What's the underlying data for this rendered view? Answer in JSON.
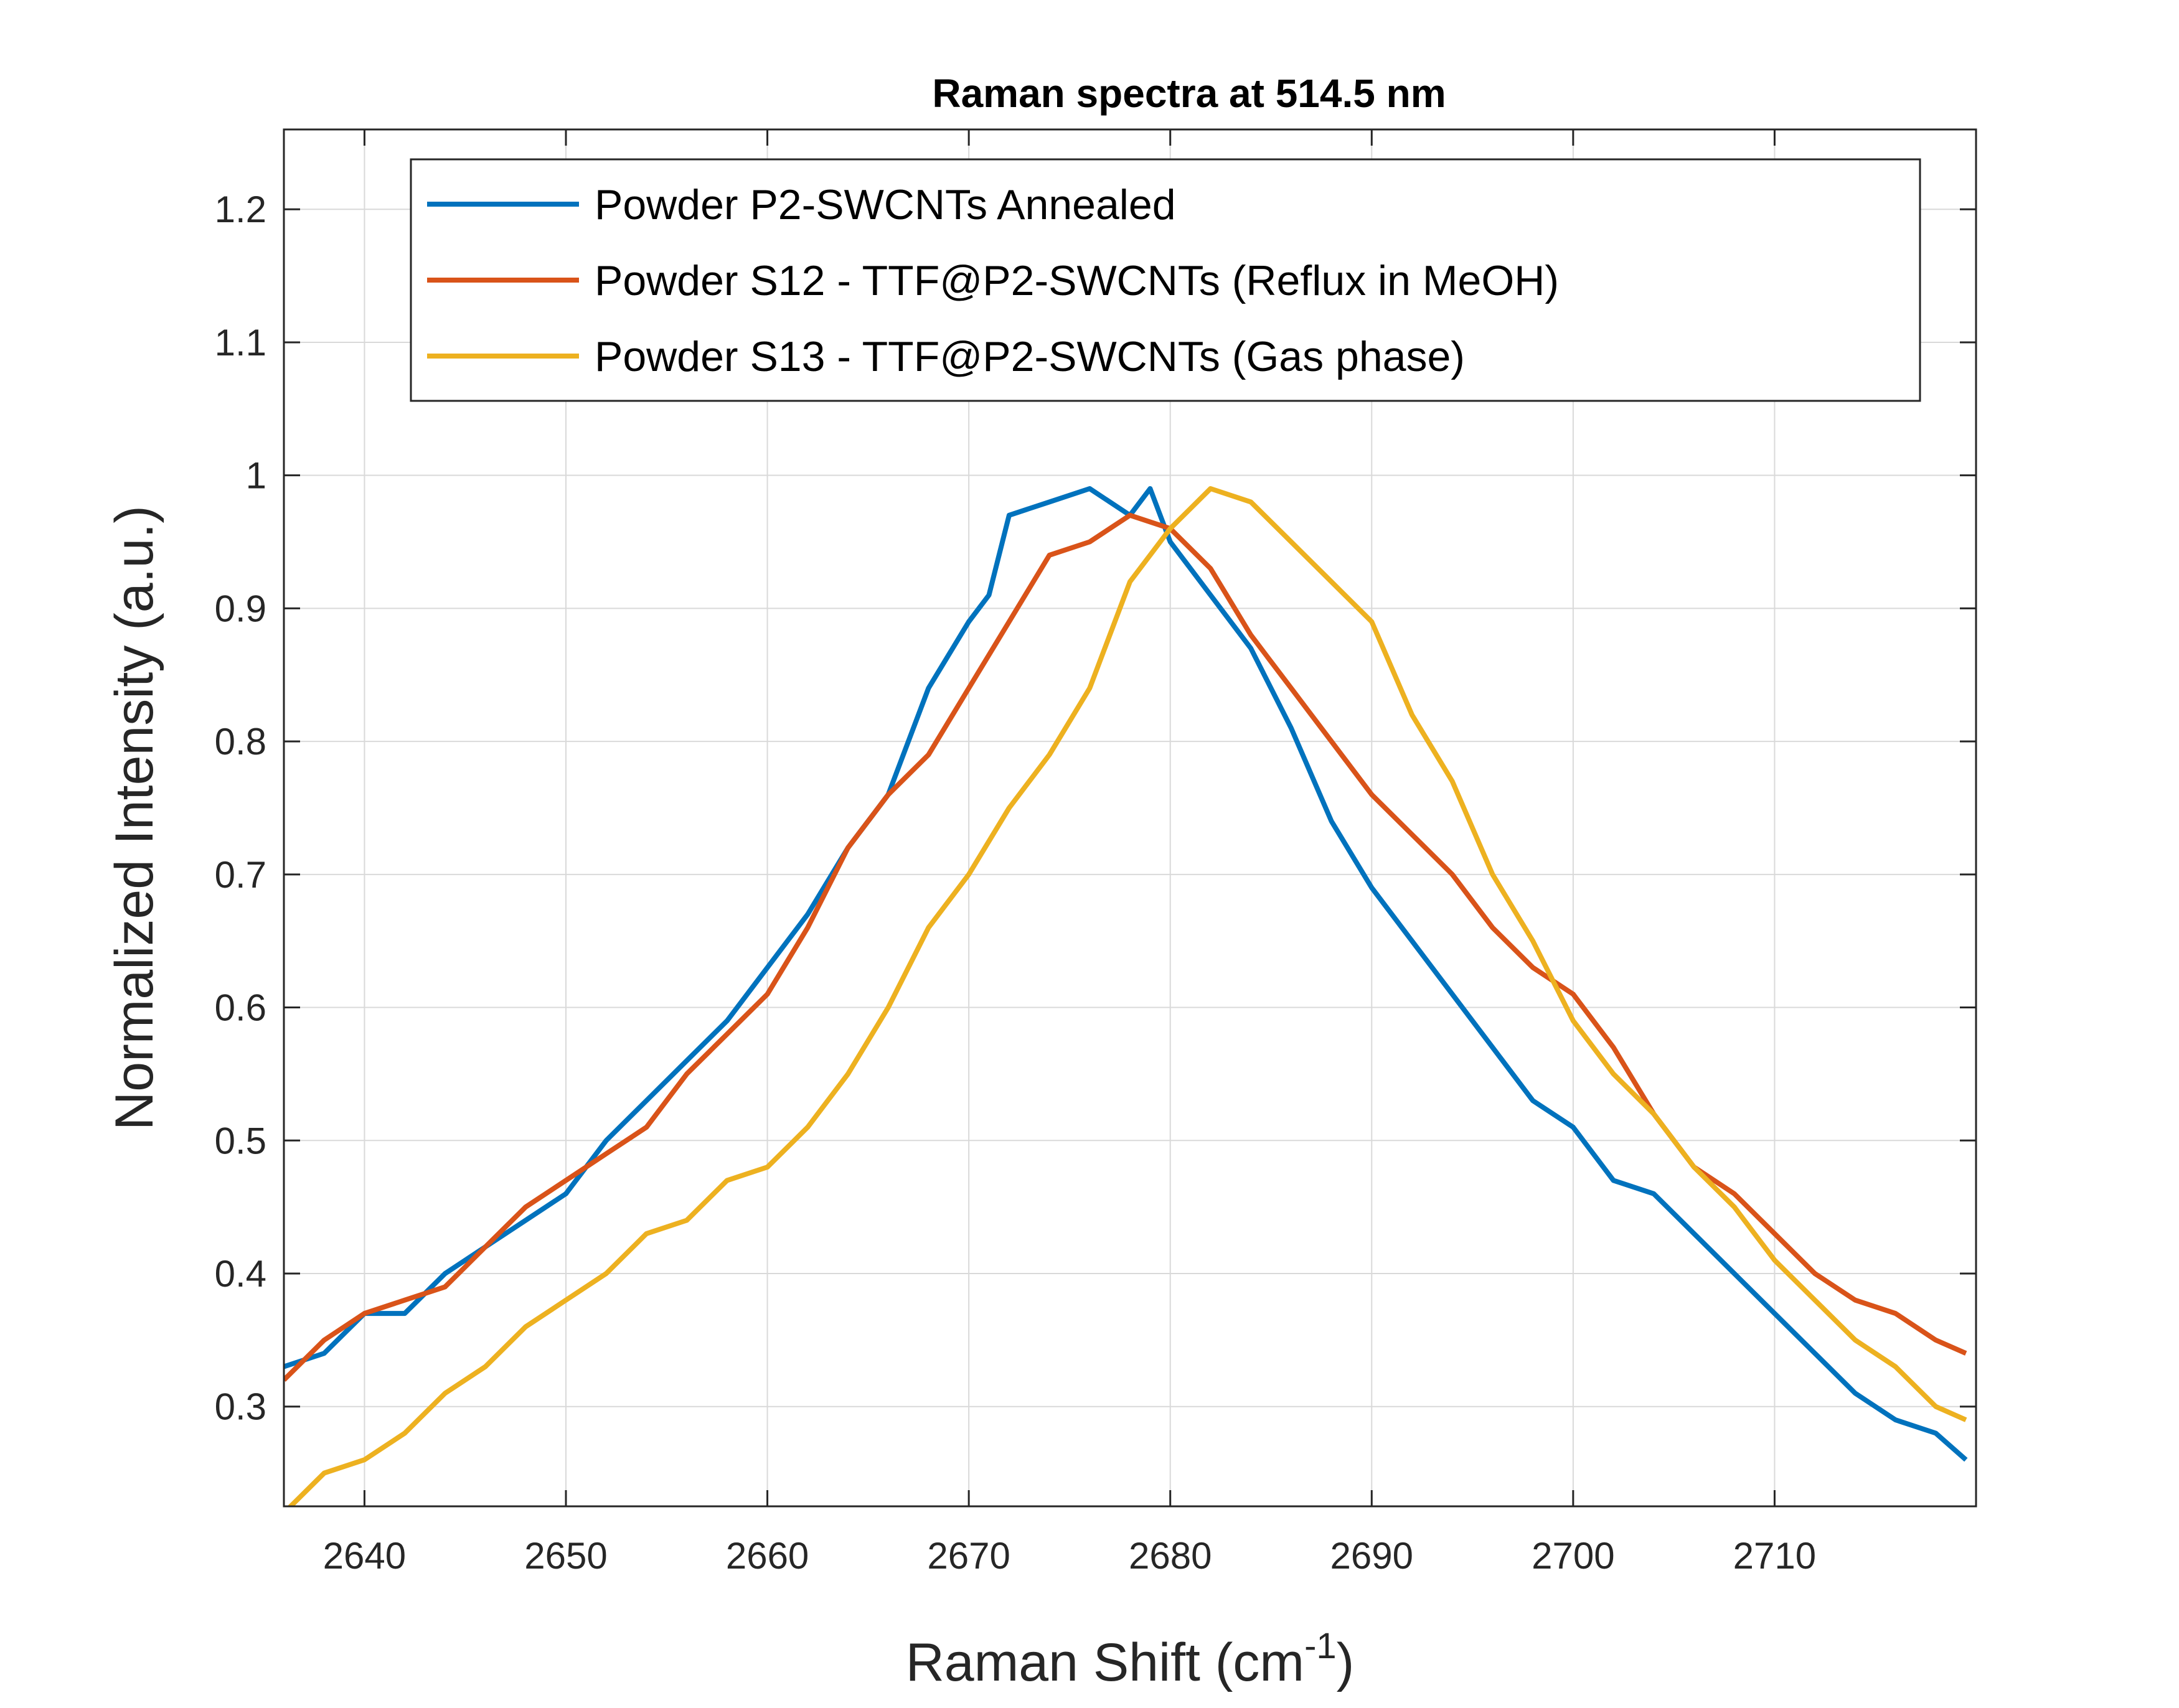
{
  "chart_data": {
    "type": "line",
    "title": "Raman spectra at 514.5 nm",
    "xlabel": "Raman Shift (cm",
    "xlabel_superscript": "-1",
    "xlabel_suffix": ")",
    "ylabel": "Normalized Intensity (a.u.)",
    "xlim": [
      2636,
      2720
    ],
    "ylim": [
      0.225,
      1.26
    ],
    "xticks": [
      2640,
      2650,
      2660,
      2670,
      2680,
      2690,
      2700,
      2710
    ],
    "yticks": [
      0.3,
      0.4,
      0.5,
      0.6,
      0.7,
      0.8,
      0.9,
      1,
      1.1,
      1.2
    ],
    "ytick_labels": [
      "0.3",
      "0.4",
      "0.5",
      "0.6",
      "0.7",
      "0.8",
      "0.9",
      "1",
      "1.1",
      "1.2"
    ],
    "grid": true,
    "legend_position": "top",
    "series": [
      {
        "name": "Powder P2-SWCNTs Annealed",
        "color": "#0072BD",
        "points": [
          [
            2636,
            0.33
          ],
          [
            2638,
            0.34
          ],
          [
            2640,
            0.37
          ],
          [
            2642,
            0.37
          ],
          [
            2644,
            0.4
          ],
          [
            2646,
            0.42
          ],
          [
            2648,
            0.44
          ],
          [
            2650,
            0.46
          ],
          [
            2652,
            0.5
          ],
          [
            2654,
            0.53
          ],
          [
            2656,
            0.56
          ],
          [
            2658,
            0.59
          ],
          [
            2660,
            0.63
          ],
          [
            2662,
            0.67
          ],
          [
            2664,
            0.72
          ],
          [
            2666,
            0.76
          ],
          [
            2668,
            0.84
          ],
          [
            2670,
            0.89
          ],
          [
            2671,
            0.91
          ],
          [
            2672,
            0.97
          ],
          [
            2674,
            0.98
          ],
          [
            2676,
            0.99
          ],
          [
            2678,
            0.97
          ],
          [
            2679,
            0.99
          ],
          [
            2680,
            0.95
          ],
          [
            2682,
            0.91
          ],
          [
            2684,
            0.87
          ],
          [
            2686,
            0.81
          ],
          [
            2688,
            0.74
          ],
          [
            2690,
            0.69
          ],
          [
            2692,
            0.65
          ],
          [
            2694,
            0.61
          ],
          [
            2696,
            0.57
          ],
          [
            2698,
            0.53
          ],
          [
            2700,
            0.51
          ],
          [
            2702,
            0.47
          ],
          [
            2704,
            0.46
          ],
          [
            2706,
            0.43
          ],
          [
            2708,
            0.4
          ],
          [
            2710,
            0.37
          ],
          [
            2712,
            0.34
          ],
          [
            2714,
            0.31
          ],
          [
            2716,
            0.29
          ],
          [
            2718,
            0.28
          ],
          [
            2719.5,
            0.26
          ]
        ]
      },
      {
        "name": "Powder S12 - TTF@P2-SWCNTs (Reflux in MeOH)",
        "color": "#D95319",
        "points": [
          [
            2636,
            0.32
          ],
          [
            2638,
            0.35
          ],
          [
            2640,
            0.37
          ],
          [
            2642,
            0.38
          ],
          [
            2644,
            0.39
          ],
          [
            2646,
            0.42
          ],
          [
            2648,
            0.45
          ],
          [
            2650,
            0.47
          ],
          [
            2652,
            0.49
          ],
          [
            2654,
            0.51
          ],
          [
            2656,
            0.55
          ],
          [
            2658,
            0.58
          ],
          [
            2660,
            0.61
          ],
          [
            2662,
            0.66
          ],
          [
            2664,
            0.72
          ],
          [
            2666,
            0.76
          ],
          [
            2668,
            0.79
          ],
          [
            2670,
            0.84
          ],
          [
            2672,
            0.89
          ],
          [
            2674,
            0.94
          ],
          [
            2676,
            0.95
          ],
          [
            2678,
            0.97
          ],
          [
            2680,
            0.96
          ],
          [
            2682,
            0.93
          ],
          [
            2684,
            0.88
          ],
          [
            2686,
            0.84
          ],
          [
            2688,
            0.8
          ],
          [
            2690,
            0.76
          ],
          [
            2692,
            0.73
          ],
          [
            2694,
            0.7
          ],
          [
            2696,
            0.66
          ],
          [
            2698,
            0.63
          ],
          [
            2700,
            0.61
          ],
          [
            2702,
            0.57
          ],
          [
            2704,
            0.52
          ],
          [
            2706,
            0.48
          ],
          [
            2708,
            0.46
          ],
          [
            2710,
            0.43
          ],
          [
            2712,
            0.4
          ],
          [
            2714,
            0.38
          ],
          [
            2716,
            0.37
          ],
          [
            2718,
            0.35
          ],
          [
            2719.5,
            0.34
          ]
        ]
      },
      {
        "name": "Powder S13 - TTF@P2-SWCNTs (Gas phase)",
        "color": "#EDB120",
        "points": [
          [
            2636,
            0.22
          ],
          [
            2638,
            0.25
          ],
          [
            2640,
            0.26
          ],
          [
            2642,
            0.28
          ],
          [
            2644,
            0.31
          ],
          [
            2646,
            0.33
          ],
          [
            2648,
            0.36
          ],
          [
            2650,
            0.38
          ],
          [
            2652,
            0.4
          ],
          [
            2654,
            0.43
          ],
          [
            2656,
            0.44
          ],
          [
            2658,
            0.47
          ],
          [
            2660,
            0.48
          ],
          [
            2662,
            0.51
          ],
          [
            2664,
            0.55
          ],
          [
            2666,
            0.6
          ],
          [
            2668,
            0.66
          ],
          [
            2670,
            0.7
          ],
          [
            2672,
            0.75
          ],
          [
            2674,
            0.79
          ],
          [
            2676,
            0.84
          ],
          [
            2678,
            0.92
          ],
          [
            2680,
            0.96
          ],
          [
            2682,
            0.99
          ],
          [
            2684,
            0.98
          ],
          [
            2686,
            0.95
          ],
          [
            2688,
            0.92
          ],
          [
            2690,
            0.89
          ],
          [
            2692,
            0.82
          ],
          [
            2694,
            0.77
          ],
          [
            2696,
            0.7
          ],
          [
            2698,
            0.65
          ],
          [
            2700,
            0.59
          ],
          [
            2702,
            0.55
          ],
          [
            2704,
            0.52
          ],
          [
            2706,
            0.48
          ],
          [
            2708,
            0.45
          ],
          [
            2710,
            0.41
          ],
          [
            2712,
            0.38
          ],
          [
            2714,
            0.35
          ],
          [
            2716,
            0.33
          ],
          [
            2718,
            0.3
          ],
          [
            2719.5,
            0.29
          ]
        ]
      }
    ]
  }
}
